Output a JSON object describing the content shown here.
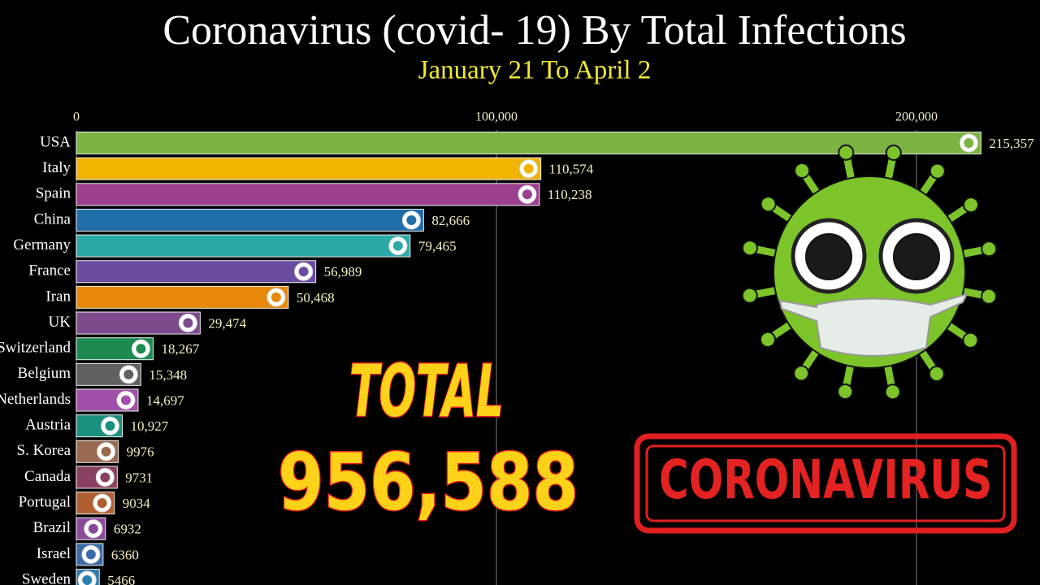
{
  "chart_data": {
    "type": "bar",
    "title": "Coronavirus (covid- 19) By Total Infections",
    "subtitle": "January 21 To April 2",
    "categories": [
      "USA",
      "Italy",
      "Spain",
      "China",
      "Germany",
      "France",
      "Iran",
      "UK",
      "Switzerland",
      "Belgium",
      "Netherlands",
      "Austria",
      "S. Korea",
      "Canada",
      "Portugal",
      "Brazil",
      "Israel",
      "Sweden"
    ],
    "values": [
      215357,
      110574,
      110238,
      82666,
      79465,
      56989,
      50468,
      29474,
      18267,
      15348,
      14697,
      10927,
      9976,
      9731,
      9034,
      6932,
      6360,
      5466
    ],
    "value_labels": [
      "215,357",
      "110,574",
      "110,238",
      "82,666",
      "79,465",
      "56,989",
      "50,468",
      "29,474",
      "18,267",
      "15,348",
      "14,697",
      "10,927",
      "9976",
      "9731",
      "9034",
      "6932",
      "6360",
      "5466"
    ],
    "colors": [
      "#7cb342",
      "#f0b400",
      "#9c3f8f",
      "#1f6ea8",
      "#2aa9a8",
      "#6a4ca0",
      "#e8890c",
      "#7d4a8c",
      "#1d8a4f",
      "#606060",
      "#a050a8",
      "#1a9080",
      "#9a6a50",
      "#8a4060",
      "#b06030",
      "#8a4a9a",
      "#3a6aa8",
      "#2a80b0"
    ],
    "xlim": [
      0,
      229400
    ],
    "xticks": [
      0,
      {
        "value": 100000,
        "label": "100,000"
      },
      {
        "value": 200000,
        "label": "200,000"
      }
    ],
    "grid": true,
    "annotations": [
      "TOTAL",
      "956,588",
      "CORONAVIRUS"
    ]
  }
}
